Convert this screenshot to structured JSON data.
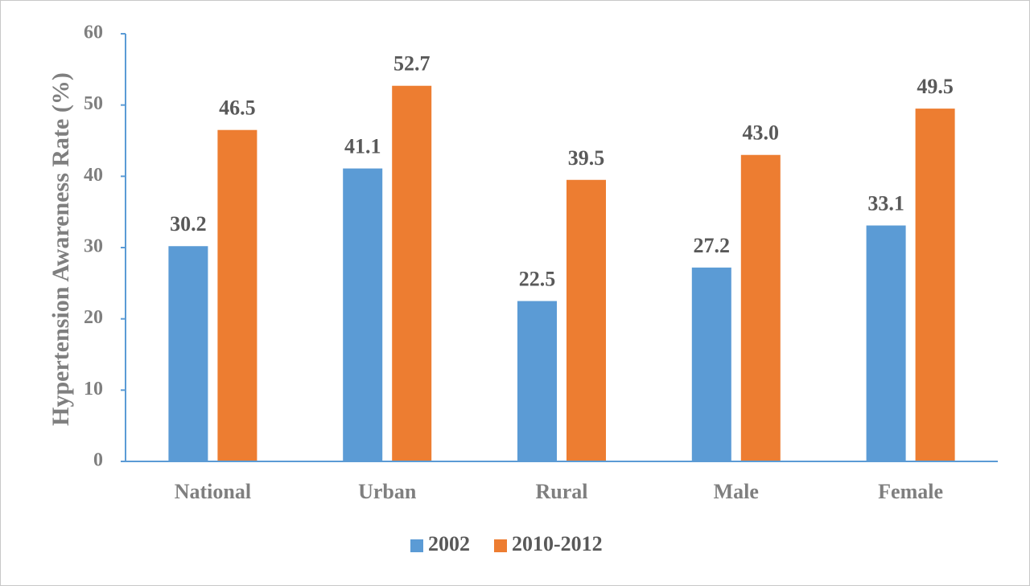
{
  "chart_data": {
    "type": "bar",
    "title": "",
    "xlabel": "",
    "ylabel": "Hypertension Awareness Rate (%)",
    "ylim": [
      0,
      60
    ],
    "yticks": [
      0,
      10,
      20,
      30,
      40,
      50,
      60
    ],
    "categories": [
      "National",
      "Urban",
      "Rural",
      "Male",
      "Female"
    ],
    "series": [
      {
        "name": "2002",
        "color": "#5b9bd5",
        "values": [
          30.2,
          41.1,
          22.5,
          27.2,
          33.1
        ],
        "labels": [
          "30.2",
          "41.1",
          "22.5",
          "27.2",
          "33.1"
        ]
      },
      {
        "name": "2010-2012",
        "color": "#ed7d31",
        "values": [
          46.5,
          52.7,
          39.5,
          43.0,
          49.5
        ],
        "labels": [
          "46.5",
          "52.7",
          "39.5",
          "43.0",
          "49.5"
        ]
      }
    ],
    "grid": false,
    "legend_position": "bottom",
    "axis_color": "#5b9bd5"
  }
}
